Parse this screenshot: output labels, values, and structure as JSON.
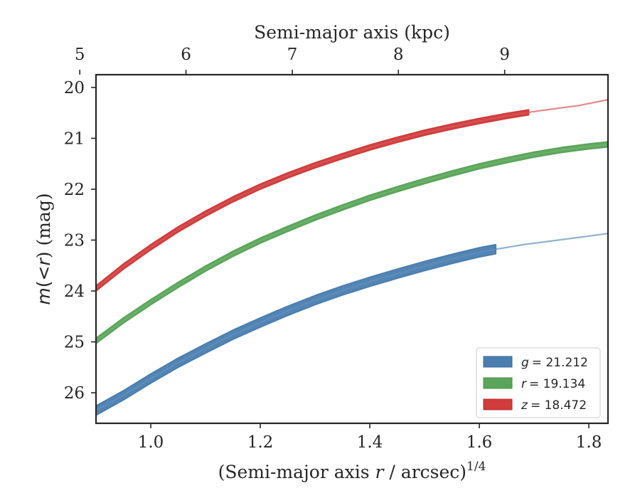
{
  "chart_data": {
    "type": "line",
    "xlabel": "(Semi-major axis r / arcsec)^{1/4}",
    "xlabel_parts": {
      "prefix": "(Semi-major axis ",
      "var": "r",
      "mid": " / arcsec)",
      "sup": "1/4"
    },
    "x2label": "Semi-major axis (kpc)",
    "ylabel_parts": {
      "var": "m",
      "mid": "(",
      "lt": "<",
      "var2": "r",
      "end": ") (mag)"
    },
    "xlim": [
      0.9,
      1.835
    ],
    "ylim": [
      26.6,
      19.75
    ],
    "x_ticks": [
      1.0,
      1.2,
      1.4,
      1.6,
      1.8
    ],
    "x_tick_labels": [
      "1.0",
      "1.2",
      "1.4",
      "1.6",
      "1.8"
    ],
    "y_ticks": [
      20,
      21,
      22,
      23,
      24,
      25,
      26
    ],
    "y_tick_labels": [
      "20",
      "21",
      "22",
      "23",
      "24",
      "25",
      "26"
    ],
    "x2_ticks": [
      5,
      6,
      7,
      8,
      9
    ],
    "x2_tick_labels": [
      "5",
      "6",
      "7",
      "8",
      "9"
    ],
    "x2_tick_positions_x": [
      0.8704,
      1.0643,
      1.2585,
      1.4522,
      1.6463
    ],
    "legend_position": "lower-right",
    "grid": false,
    "series": [
      {
        "name": "g = 21.212",
        "legend_var": "g",
        "legend_value": "= 21.212",
        "color": "#4a7eb0",
        "band_halfwidth": 0.09,
        "measured": [
          [
            0.9,
            26.35
          ],
          [
            0.95,
            26.05
          ],
          [
            1.0,
            25.72
          ],
          [
            1.05,
            25.41
          ],
          [
            1.1,
            25.13
          ],
          [
            1.15,
            24.86
          ],
          [
            1.2,
            24.62
          ],
          [
            1.25,
            24.39
          ],
          [
            1.3,
            24.18
          ],
          [
            1.35,
            23.99
          ],
          [
            1.4,
            23.82
          ],
          [
            1.45,
            23.66
          ],
          [
            1.5,
            23.51
          ],
          [
            1.55,
            23.37
          ],
          [
            1.6,
            23.24
          ],
          [
            1.63,
            23.18
          ]
        ],
        "extrapolated": [
          [
            1.63,
            23.18
          ],
          [
            1.68,
            23.09
          ],
          [
            1.73,
            23.02
          ],
          [
            1.78,
            22.95
          ],
          [
            1.835,
            22.87
          ]
        ]
      },
      {
        "name": "r = 19.134",
        "legend_var": "r",
        "legend_value": "= 19.134",
        "color": "#5aa55a",
        "band_halfwidth": 0.05,
        "measured": [
          [
            0.9,
            24.98
          ],
          [
            0.95,
            24.58
          ],
          [
            1.0,
            24.22
          ],
          [
            1.05,
            23.88
          ],
          [
            1.1,
            23.56
          ],
          [
            1.15,
            23.27
          ],
          [
            1.2,
            23.01
          ],
          [
            1.25,
            22.78
          ],
          [
            1.3,
            22.56
          ],
          [
            1.35,
            22.36
          ],
          [
            1.4,
            22.17
          ],
          [
            1.45,
            22.0
          ],
          [
            1.5,
            21.84
          ],
          [
            1.55,
            21.69
          ],
          [
            1.6,
            21.55
          ],
          [
            1.65,
            21.43
          ],
          [
            1.7,
            21.32
          ],
          [
            1.75,
            21.23
          ],
          [
            1.8,
            21.16
          ],
          [
            1.835,
            21.12
          ]
        ],
        "extrapolated": []
      },
      {
        "name": "z = 18.472",
        "legend_var": "z",
        "legend_value": "= 18.472",
        "color": "#d13b3b",
        "band_halfwidth": 0.05,
        "measured": [
          [
            0.9,
            23.95
          ],
          [
            0.95,
            23.52
          ],
          [
            1.0,
            23.14
          ],
          [
            1.05,
            22.79
          ],
          [
            1.1,
            22.48
          ],
          [
            1.15,
            22.2
          ],
          [
            1.2,
            21.95
          ],
          [
            1.25,
            21.73
          ],
          [
            1.3,
            21.53
          ],
          [
            1.35,
            21.35
          ],
          [
            1.4,
            21.18
          ],
          [
            1.45,
            21.03
          ],
          [
            1.5,
            20.89
          ],
          [
            1.55,
            20.77
          ],
          [
            1.6,
            20.66
          ],
          [
            1.65,
            20.56
          ],
          [
            1.69,
            20.49
          ]
        ],
        "extrapolated": [
          [
            1.69,
            20.49
          ],
          [
            1.73,
            20.43
          ],
          [
            1.78,
            20.36
          ],
          [
            1.835,
            20.24
          ]
        ]
      }
    ]
  }
}
